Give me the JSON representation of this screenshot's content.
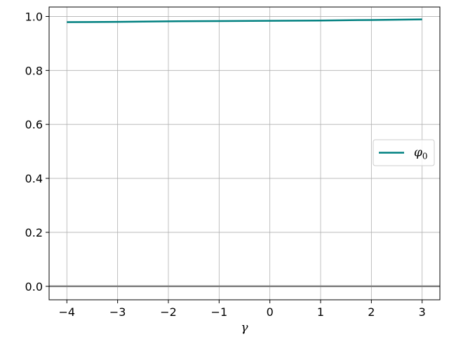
{
  "chart_data": {
    "type": "line",
    "xlabel": "γ",
    "ylabel": "",
    "xlim": [
      -4.35,
      3.35
    ],
    "ylim": [
      -0.05,
      1.035
    ],
    "xticks": [
      -4,
      -3,
      -2,
      -1,
      0,
      1,
      2,
      3
    ],
    "xtick_labels": [
      "−4",
      "−3",
      "−2",
      "−1",
      "0",
      "1",
      "2",
      "3"
    ],
    "yticks": [
      0.0,
      0.2,
      0.4,
      0.6,
      0.8,
      1.0
    ],
    "ytick_labels": [
      "0.0",
      "0.2",
      "0.4",
      "0.6",
      "0.8",
      "1.0"
    ],
    "grid": true,
    "legend_position": "center-right",
    "series": [
      {
        "name": "φ",
        "name_subscript": "0",
        "color": "#008080",
        "x": [
          -4,
          -3,
          -2,
          -1,
          0,
          1,
          2,
          3
        ],
        "y": [
          0.979,
          0.98,
          0.982,
          0.983,
          0.984,
          0.985,
          0.987,
          0.989
        ]
      }
    ],
    "reference_lines": [
      {
        "y": 0.0,
        "color": "#808080"
      }
    ]
  }
}
